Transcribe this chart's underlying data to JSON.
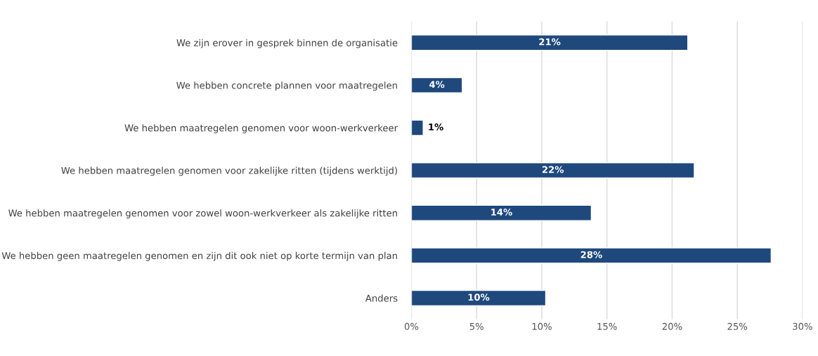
{
  "chart_data": {
    "type": "bar",
    "orientation": "horizontal",
    "categories": [
      "We zijn erover in gesprek binnen de organisatie",
      "We hebben concrete plannen voor maatregelen",
      "We hebben maatregelen genomen voor woon-werkverkeer",
      "We hebben maatregelen genomen voor zakelijke ritten (tijdens werktijd)",
      "We hebben maatregelen genomen voor zowel woon-werkverkeer als zakelijke ritten",
      "We hebben geen maatregelen genomen en zijn dit ook niet op korte termijn van plan",
      "Anders"
    ],
    "values": [
      21.2,
      3.9,
      0.9,
      21.7,
      13.8,
      27.6,
      10.3
    ],
    "value_labels": [
      "21%",
      "4%",
      "1%",
      "22%",
      "14%",
      "28%",
      "10%"
    ],
    "color": "#1f497d",
    "xlim": [
      0,
      30
    ],
    "xticks": [
      {
        "value": 0,
        "label": "0%"
      },
      {
        "value": 5,
        "label": "5%"
      },
      {
        "value": 10,
        "label": "10%"
      },
      {
        "value": 15,
        "label": "15%"
      },
      {
        "value": 20,
        "label": "20%"
      },
      {
        "value": 25,
        "label": "25%"
      },
      {
        "value": 30,
        "label": "30%"
      }
    ],
    "grid": "x",
    "legend": false
  }
}
